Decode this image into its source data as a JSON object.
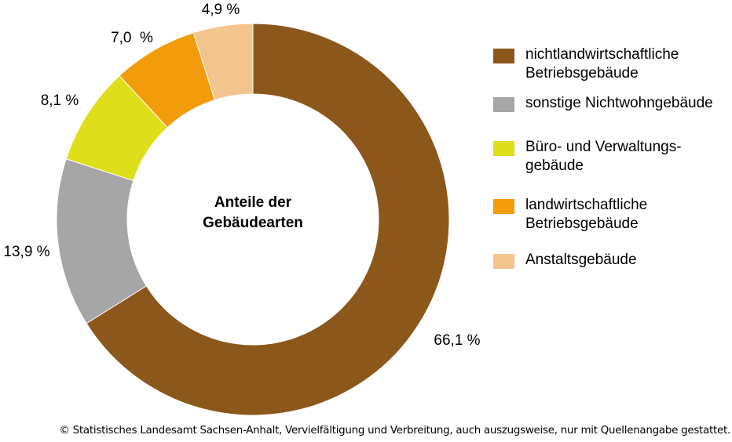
{
  "chart_data": {
    "type": "pie",
    "subtype": "donut",
    "center_title": "Anteile der\nGebäudearten",
    "categories": [
      "nichtlandwirtschaftliche\nBetriebsgebäude",
      "sonstige Nichtwohngebäude",
      "Büro- und Verwaltungs-\ngebäude",
      "landwirtschaftliche\nBetriebsgebäude",
      "Anstaltsgebäude"
    ],
    "values": [
      66.1,
      13.9,
      8.1,
      7.0,
      4.9
    ],
    "value_labels": [
      "66,1 %",
      "13,9 %",
      "8,1 %",
      "7,0  %",
      "4,9 %"
    ],
    "colors": [
      "#8B571A",
      "#A6A6A6",
      "#DEDE1A",
      "#F29C0C",
      "#F4C48E"
    ],
    "legend_position": "right",
    "start_angle_deg": 0,
    "direction": "clockwise"
  },
  "footer": {
    "copyright": "© Statistisches Landesamt Sachsen-Anhalt, Vervielfältigung und Verbreitung, auch auszugsweise, nur mit Quellenangabe gestattet."
  }
}
